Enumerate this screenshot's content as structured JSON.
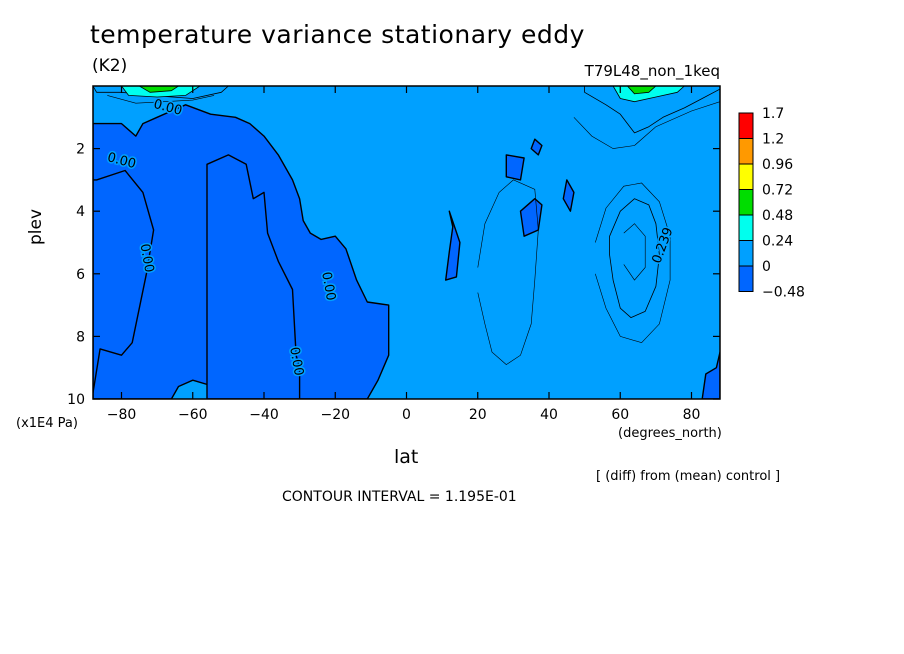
{
  "title": "temperature variance stationary eddy",
  "units": "(K2)",
  "run_label": "T79L48_non_1keq",
  "yaxis_label": "plev",
  "yaxis_units": "(x1E4 Pa)",
  "xaxis_label": "lat",
  "xaxis_units": "(degrees_north)",
  "diff_note": "[ (diff) from (mean) control ]",
  "contour_interval": "CONTOUR INTERVAL = 1.195E-01",
  "chart_data": {
    "type": "heatmap",
    "xlim": [
      -88,
      88
    ],
    "ylim": [
      10,
      0
    ],
    "xticks": [
      -80,
      -60,
      -40,
      -20,
      0,
      20,
      40,
      60,
      80
    ],
    "xtick_labels": [
      "−80",
      "−60",
      "−40",
      "−20",
      "0",
      "20",
      "40",
      "60",
      "80"
    ],
    "yticks": [
      2,
      4,
      6,
      8,
      10
    ],
    "ytick_labels": [
      "2",
      "4",
      "6",
      "8",
      "10"
    ],
    "legend": {
      "placement": "right",
      "labels": [
        "1.7",
        "1.2",
        "0.96",
        "0.72",
        "0.48",
        "0.24",
        "0",
        "−0.48"
      ],
      "colors": [
        "#ff0000",
        "#ff9900",
        "#ffff00",
        "#00dd00",
        "#00ffee",
        "#00a0ff",
        "#0066ff"
      ]
    },
    "background_color": "#00a0ff",
    "contour_labels": [
      {
        "text": "0.00",
        "x": -67,
        "y": 0.7
      },
      {
        "text": "0.00",
        "x": -80,
        "y": 2.4
      },
      {
        "text": "0.00",
        "x": -73,
        "y": 5.5
      },
      {
        "text": "0.00",
        "x": -22,
        "y": 6.4
      },
      {
        "text": "0.00",
        "x": -31,
        "y": 8.8
      },
      {
        "text": "0.239",
        "x": 72,
        "y": 5.1
      }
    ],
    "negative_regions": [
      [
        [
          -88,
          1.2
        ],
        [
          -80,
          1.2
        ],
        [
          -76,
          1.6
        ],
        [
          -74,
          1.2
        ],
        [
          -70,
          1.0
        ],
        [
          -66,
          0.8
        ],
        [
          -62,
          0.6
        ],
        [
          -55,
          0.9
        ],
        [
          -48,
          1.0
        ],
        [
          -44,
          1.2
        ],
        [
          -40,
          1.6
        ],
        [
          -36,
          2.2
        ],
        [
          -32,
          3.0
        ],
        [
          -30,
          3.6
        ],
        [
          -29,
          4.3
        ],
        [
          -27,
          4.7
        ],
        [
          -24,
          4.9
        ],
        [
          -20,
          4.8
        ],
        [
          -17,
          5.2
        ],
        [
          -14,
          6.2
        ],
        [
          -11,
          6.9
        ],
        [
          -5,
          7.0
        ],
        [
          -5,
          8.6
        ],
        [
          -8,
          9.4
        ],
        [
          -11,
          10
        ],
        [
          -50,
          10
        ],
        [
          -54,
          9.6
        ],
        [
          -60,
          9.4
        ],
        [
          -64,
          9.6
        ],
        [
          -66,
          10
        ],
        [
          -88,
          10
        ]
      ],
      [
        [
          -88,
          9.8
        ],
        [
          -86,
          8.4
        ],
        [
          -80,
          8.6
        ],
        [
          -77,
          8.2
        ],
        [
          -73,
          6.0
        ],
        [
          -71,
          4.6
        ],
        [
          -74,
          3.4
        ],
        [
          -79,
          2.7
        ],
        [
          -87,
          3.0
        ],
        [
          -88,
          3.0
        ]
      ],
      [
        [
          -42,
          10
        ],
        [
          -40,
          8.4
        ],
        [
          -36,
          8.4
        ],
        [
          -34,
          9.2
        ],
        [
          -32,
          10
        ]
      ],
      [
        [
          -45,
          2.5
        ],
        [
          -43,
          3.6
        ],
        [
          -40,
          3.4
        ],
        [
          -39,
          4.7
        ],
        [
          -36,
          5.6
        ],
        [
          -32,
          6.5
        ],
        [
          -31,
          8.6
        ],
        [
          -30,
          9.0
        ],
        [
          -30,
          10
        ],
        [
          -56,
          10
        ],
        [
          -56,
          2.5
        ],
        [
          -50,
          2.2
        ]
      ],
      [
        [
          12,
          4.0
        ],
        [
          15,
          5.0
        ],
        [
          14,
          6.1
        ],
        [
          11,
          6.2
        ],
        [
          12,
          5.3
        ],
        [
          13,
          4.5
        ]
      ],
      [
        [
          32,
          4.0
        ],
        [
          36,
          3.6
        ],
        [
          38,
          3.8
        ],
        [
          37,
          4.6
        ],
        [
          33,
          4.8
        ]
      ],
      [
        [
          28,
          2.2
        ],
        [
          33,
          2.3
        ],
        [
          32,
          3.0
        ],
        [
          28,
          2.9
        ]
      ],
      [
        [
          45,
          3.0
        ],
        [
          47,
          3.4
        ],
        [
          46,
          4.0
        ],
        [
          44,
          3.6
        ]
      ],
      [
        [
          84,
          9.2
        ],
        [
          87,
          9.0
        ],
        [
          88,
          8.5
        ],
        [
          88,
          10
        ],
        [
          83,
          10
        ]
      ],
      [
        [
          36,
          1.7
        ],
        [
          38,
          1.9
        ],
        [
          37,
          2.2
        ],
        [
          35,
          2.0
        ]
      ]
    ],
    "positive_regions": [
      {
        "level": "0.24",
        "points": [
          [
            57,
            4.8
          ],
          [
            60,
            4.0
          ],
          [
            64,
            3.6
          ],
          [
            68,
            3.8
          ],
          [
            70,
            4.4
          ],
          [
            71,
            5.4
          ],
          [
            70,
            6.4
          ],
          [
            67,
            7.2
          ],
          [
            63,
            7.4
          ],
          [
            60,
            7.1
          ],
          [
            58,
            6.2
          ],
          [
            57,
            5.4
          ]
        ]
      },
      {
        "level": "0.24",
        "points": [
          [
            50,
            0.2
          ],
          [
            56,
            0.6
          ],
          [
            60,
            0.9
          ],
          [
            64,
            1.5
          ],
          [
            68,
            1.3
          ],
          [
            72,
            1.0
          ],
          [
            78,
            0.7
          ],
          [
            83,
            0.4
          ],
          [
            88,
            0.1
          ],
          [
            88,
            0
          ],
          [
            50,
            0
          ]
        ]
      },
      {
        "level": "0.24",
        "points": [
          [
            -88,
            0
          ],
          [
            -87,
            0.2
          ],
          [
            -80,
            0.2
          ],
          [
            -72,
            0.3
          ],
          [
            -60,
            0.4
          ],
          [
            -52,
            0.2
          ],
          [
            -50,
            0
          ]
        ]
      },
      {
        "level": "0.48",
        "points": [
          [
            -80,
            0
          ],
          [
            -78,
            0.3
          ],
          [
            -70,
            0.35
          ],
          [
            -62,
            0.3
          ],
          [
            -58,
            0
          ]
        ]
      },
      {
        "level": "0.48",
        "points": [
          [
            58,
            0
          ],
          [
            60,
            0.4
          ],
          [
            64,
            0.5
          ],
          [
            70,
            0.35
          ],
          [
            76,
            0.2
          ],
          [
            78,
            0
          ]
        ]
      },
      {
        "level": "0.72",
        "points": [
          [
            -75,
            0
          ],
          [
            -72,
            0.2
          ],
          [
            -66,
            0.15
          ],
          [
            -64,
            0
          ]
        ]
      },
      {
        "level": "0.72",
        "points": [
          [
            62,
            0
          ],
          [
            64,
            0.25
          ],
          [
            68,
            0.2
          ],
          [
            70,
            0
          ]
        ]
      }
    ],
    "contour_lines": [
      [
        [
          20,
          5.8
        ],
        [
          22,
          4.4
        ],
        [
          26,
          3.4
        ],
        [
          30,
          3.0
        ],
        [
          36,
          3.3
        ],
        [
          37,
          4.6
        ],
        [
          36,
          6.2
        ],
        [
          35,
          7.6
        ],
        [
          32,
          8.6
        ],
        [
          28,
          8.9
        ],
        [
          24,
          8.5
        ],
        [
          22,
          7.6
        ],
        [
          20,
          6.6
        ]
      ],
      [
        [
          53,
          5.0
        ],
        [
          56,
          3.9
        ],
        [
          61,
          3.2
        ],
        [
          66,
          3.1
        ],
        [
          71,
          3.7
        ],
        [
          74,
          4.8
        ],
        [
          74,
          6.2
        ],
        [
          71,
          7.6
        ],
        [
          66,
          8.2
        ],
        [
          60,
          8.0
        ],
        [
          56,
          7.1
        ],
        [
          53,
          6.0
        ]
      ],
      [
        [
          61,
          4.7
        ],
        [
          64,
          4.4
        ],
        [
          67,
          4.8
        ],
        [
          67,
          5.8
        ],
        [
          64,
          6.2
        ],
        [
          61,
          5.7
        ]
      ],
      [
        [
          47,
          1.0
        ],
        [
          52,
          1.6
        ],
        [
          58,
          2.0
        ],
        [
          64,
          1.9
        ],
        [
          70,
          1.3
        ],
        [
          80,
          0.8
        ],
        [
          88,
          0.5
        ]
      ],
      [
        [
          -84,
          0.3
        ],
        [
          -76,
          0.55
        ],
        [
          -68,
          0.5
        ],
        [
          -60,
          0.45
        ],
        [
          -54,
          0.3
        ]
      ]
    ]
  }
}
